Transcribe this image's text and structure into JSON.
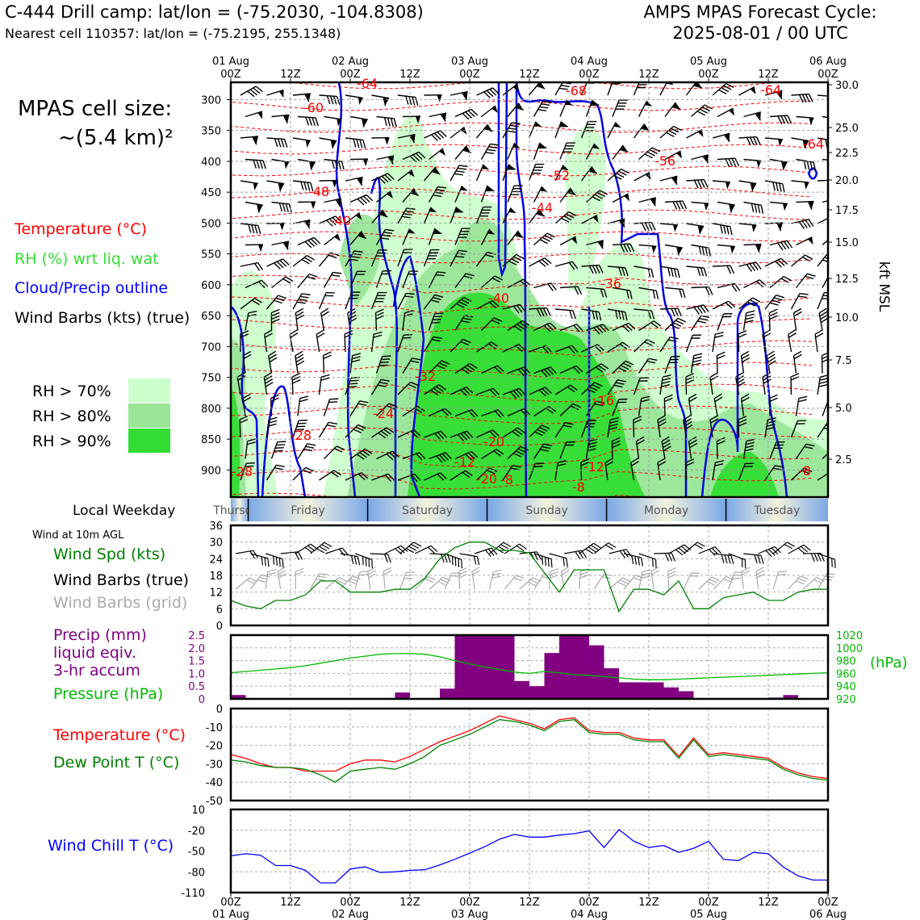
{
  "header": {
    "title_left": "C-444 Drill camp: lat/lon = (-75.2030, -104.8308)",
    "subtitle_left": "Nearest cell 110357: lat/lon = (-75.2195, 255.1348)",
    "title_right_1": "AMPS MPAS Forecast Cycle:",
    "title_right_2": "2025-08-01 / 00 UTC"
  },
  "top_legend": {
    "cell_size_1": "MPAS cell size:",
    "cell_size_2": "~(5.4 km)²",
    "temperature": "Temperature (°C)",
    "rh": "RH (%) wrt liq. wat",
    "cloud": "Cloud/Precip outline",
    "barbs": "Wind Barbs (kts) (true)",
    "rh70": "RH > 70%",
    "rh80": "RH > 80%",
    "rh90": "RH > 90%"
  },
  "colors": {
    "rh70": "#ccffcc",
    "rh80": "#99e699",
    "rh90": "#33dd33",
    "temp": "#ff0000",
    "cloud": "#0000dd",
    "pressure": "#00bb00",
    "precip": "#800080",
    "wind_speed": "#008000",
    "dewpoint": "#008000",
    "wind_chill": "#0000ff"
  },
  "time_axis": {
    "top_labels": [
      {
        "day": "01 Aug",
        "hour": "00Z",
        "h": 0
      },
      {
        "day": "",
        "hour": "12Z",
        "h": 12
      },
      {
        "day": "02 Aug",
        "hour": "00Z",
        "h": 24
      },
      {
        "day": "",
        "hour": "12Z",
        "h": 36
      },
      {
        "day": "03 Aug",
        "hour": "00Z",
        "h": 48
      },
      {
        "day": "",
        "hour": "12Z",
        "h": 60
      },
      {
        "day": "04 Aug",
        "hour": "00Z",
        "h": 72
      },
      {
        "day": "",
        "hour": "12Z",
        "h": 84
      },
      {
        "day": "05 Aug",
        "hour": "00Z",
        "h": 96
      },
      {
        "day": "",
        "hour": "12Z",
        "h": 108
      },
      {
        "day": "06 Aug",
        "hour": "00Z",
        "h": 120
      }
    ]
  },
  "weekday_bar": {
    "label": "Local Weekday",
    "days": [
      "Thursday",
      "Friday",
      "Saturday",
      "Sunday",
      "Monday",
      "Tuesday"
    ]
  },
  "chart_data": [
    {
      "type": "heatmap",
      "panel": "cross-section",
      "x_hours_range": [
        0,
        120
      ],
      "y_left_ticks_hpa": [
        300,
        350,
        400,
        450,
        500,
        550,
        600,
        650,
        700,
        750,
        800,
        850,
        900
      ],
      "y_right_label": "kft MSL",
      "y_right_ticks": [
        "30.0",
        "25.0",
        "22.5",
        "20.0",
        "17.5",
        "15.0",
        "12.5",
        "10.0",
        "7.5",
        "5.0",
        "2.5"
      ],
      "temperature_labels": [
        "-64",
        "-60",
        "-64",
        "-68",
        "-64",
        "-56",
        "-52",
        "-48",
        "-44",
        "-40",
        "-40",
        "-36",
        "-32",
        "-24",
        "-16",
        "-20",
        "-20",
        "-28",
        "-8",
        "-12",
        "-12",
        "-8",
        "-8",
        "-28"
      ],
      "grid": true
    },
    {
      "type": "line",
      "panel": "wind",
      "header": "Wind at 10m AGL",
      "legend": [
        "Wind Spd (kts)",
        "Wind Barbs (true)",
        "Wind Barbs (grid)"
      ],
      "yticks": [
        0,
        6,
        12,
        18,
        24,
        30,
        36
      ],
      "ylim": [
        0,
        36
      ],
      "x_hours": [
        0,
        3,
        6,
        9,
        12,
        15,
        18,
        21,
        24,
        27,
        30,
        33,
        36,
        39,
        42,
        45,
        48,
        51,
        54,
        57,
        60,
        63,
        66,
        69,
        72,
        75,
        78,
        81,
        84,
        87,
        90,
        93,
        96,
        99,
        102,
        105,
        108,
        111,
        114,
        117,
        120
      ],
      "wind_speed": [
        9,
        7,
        6,
        9,
        9,
        11,
        16,
        16,
        12,
        12,
        12,
        13,
        13,
        17,
        24,
        28,
        30,
        30,
        27,
        27,
        26,
        19,
        12,
        20,
        20,
        20,
        5,
        13,
        13,
        11,
        16,
        6,
        6,
        10,
        11,
        12,
        9,
        9,
        12,
        13,
        13
      ]
    },
    {
      "type": "bar",
      "panel": "precip",
      "legend": [
        "Precip (mm)",
        "liquid eqiv.",
        "3-hr accum",
        "Pressure (hPa)"
      ],
      "y_left_ticks": [
        "0",
        "0.5",
        "1.0",
        "1.5",
        "2.0",
        "2.5"
      ],
      "y_right_ticks": [
        "920",
        "940",
        "960",
        "980",
        "1000",
        "1020"
      ],
      "y_right_label": "(hPa)",
      "ylim": [
        0,
        2.5
      ],
      "x_hours": [
        0,
        3,
        6,
        9,
        12,
        15,
        18,
        21,
        24,
        27,
        30,
        33,
        36,
        39,
        42,
        45,
        48,
        51,
        54,
        57,
        60,
        63,
        66,
        69,
        72,
        75,
        78,
        81,
        84,
        87,
        90,
        93,
        96,
        99,
        102,
        105,
        108,
        111,
        114,
        117
      ],
      "precip_mm": [
        0.15,
        0,
        0,
        0,
        0,
        0,
        0,
        0,
        0,
        0,
        0,
        0.25,
        0,
        0,
        0.4,
        2.5,
        2.5,
        2.5,
        2.5,
        0.7,
        0.5,
        1.8,
        2.5,
        2.5,
        2.1,
        1.2,
        0.65,
        0.65,
        0.65,
        0.45,
        0.3,
        0,
        0,
        0,
        0,
        0,
        0.05,
        0.15,
        0,
        0
      ],
      "pressure_hpa": [
        961,
        963,
        965,
        967,
        969,
        972,
        976,
        980,
        984,
        987,
        990,
        991,
        991,
        990,
        986,
        980,
        975,
        970,
        966,
        962,
        960,
        963,
        961,
        958,
        957,
        955,
        953,
        951,
        950,
        950,
        951,
        952,
        953,
        954,
        955,
        956,
        957,
        958,
        959,
        960,
        961
      ]
    },
    {
      "type": "line",
      "panel": "temperature",
      "legend": [
        "Temperature (°C)",
        "Dew Point T (°C)"
      ],
      "yticks": [
        0,
        -10,
        -20,
        -30,
        -40,
        -50
      ],
      "ylim": [
        -50,
        0
      ],
      "x_hours": [
        0,
        3,
        6,
        9,
        12,
        15,
        18,
        21,
        24,
        27,
        30,
        33,
        36,
        39,
        42,
        45,
        48,
        51,
        54,
        57,
        60,
        63,
        66,
        69,
        72,
        75,
        78,
        81,
        84,
        87,
        90,
        93,
        96,
        99,
        102,
        105,
        108,
        111,
        114,
        117,
        120
      ],
      "temperature": [
        -25,
        -27,
        -30,
        -32,
        -32,
        -34,
        -34,
        -34,
        -30,
        -28,
        -28,
        -29,
        -26,
        -22,
        -18,
        -15,
        -12,
        -8,
        -4,
        -6,
        -8,
        -11,
        -6,
        -5,
        -12,
        -13,
        -13,
        -16,
        -17,
        -17,
        -26,
        -16,
        -25,
        -24,
        -25,
        -26,
        -27,
        -32,
        -35,
        -37,
        -38
      ],
      "dewpoint": [
        -28,
        -29,
        -31,
        -32,
        -32,
        -33,
        -36,
        -40,
        -34,
        -33,
        -32,
        -33,
        -30,
        -26,
        -20,
        -17,
        -14,
        -10,
        -6,
        -7,
        -9,
        -12,
        -7,
        -6,
        -13,
        -14,
        -14,
        -17,
        -18,
        -18,
        -27,
        -17,
        -26,
        -25,
        -26,
        -27,
        -28,
        -33,
        -36,
        -38,
        -39
      ]
    },
    {
      "type": "line",
      "panel": "wind_chill",
      "legend": [
        "Wind Chill T (°C)"
      ],
      "yticks": [
        10,
        -20,
        -50,
        -80,
        -110
      ],
      "ylim": [
        -110,
        10
      ],
      "x_hours": [
        0,
        3,
        6,
        9,
        12,
        15,
        18,
        21,
        24,
        27,
        30,
        33,
        36,
        39,
        42,
        45,
        48,
        51,
        54,
        57,
        60,
        63,
        66,
        69,
        72,
        75,
        78,
        81,
        84,
        87,
        90,
        93,
        96,
        99,
        102,
        105,
        108,
        111,
        114,
        117,
        120
      ],
      "wind_chill": [
        -57,
        -54,
        -56,
        -71,
        -71,
        -78,
        -96,
        -96,
        -76,
        -73,
        -81,
        -80,
        -78,
        -77,
        -70,
        -62,
        -53,
        -44,
        -33,
        -26,
        -30,
        -30,
        -27,
        -25,
        -21,
        -45,
        -19,
        -36,
        -45,
        -42,
        -52,
        -46,
        -36,
        -62,
        -64,
        -52,
        -54,
        -73,
        -86,
        -92,
        -92
      ]
    }
  ],
  "x_axis_bottom": [
    {
      "hour": "00Z",
      "day": "01 Aug"
    },
    {
      "hour": "12Z",
      "day": ""
    },
    {
      "hour": "00Z",
      "day": "02 Aug"
    },
    {
      "hour": "12Z",
      "day": ""
    },
    {
      "hour": "00Z",
      "day": "03 Aug"
    },
    {
      "hour": "12Z",
      "day": ""
    },
    {
      "hour": "00Z",
      "day": "04 Aug"
    },
    {
      "hour": "12Z",
      "day": ""
    },
    {
      "hour": "00Z",
      "day": "05 Aug"
    },
    {
      "hour": "12Z",
      "day": ""
    },
    {
      "hour": "00Z",
      "day": "06 Aug"
    }
  ]
}
